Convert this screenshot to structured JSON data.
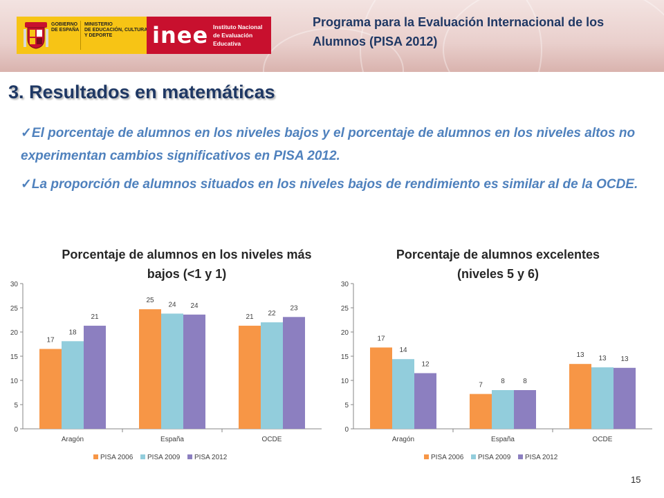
{
  "header": {
    "gobierno_text": "GOBIERNO\nDE ESPAÑA",
    "ministerio_text": "MINISTERIO\nDE EDUCACIÓN, CULTURA\nY DEPORTE",
    "inee_mark": "inee",
    "inee_text": "Instituto Nacional\nde Evaluación\nEducativa",
    "program_title": "Programa para la Evaluación Internacional de los Alumnos (PISA 2012)"
  },
  "slide": {
    "title": "3. Resultados en matemáticas",
    "bullets": [
      "El porcentaje de alumnos en los niveles bajos y el porcentaje de alumnos en los niveles altos  no experimentan cambios significativos en PISA 2012.",
      "La proporción de alumnos situados en los niveles bajos de rendimiento es similar al de la OCDE."
    ],
    "check_mark": "✓",
    "page_number": "15"
  },
  "colors": {
    "PISA 2006": "#f79646",
    "PISA 2009": "#92cddc",
    "PISA 2012": "#8c7fc0",
    "title": "#1f3864",
    "bullets": "#4f81bd"
  },
  "chart_data": [
    {
      "type": "bar",
      "title": "Porcentaje de alumnos en los niveles más bajos (<1 y 1)",
      "categories": [
        "Aragón",
        "España",
        "OCDE"
      ],
      "series": [
        {
          "name": "PISA 2006",
          "values": [
            17,
            25,
            21
          ],
          "plotted": [
            16.5,
            24.7,
            21.3
          ]
        },
        {
          "name": "PISA 2009",
          "values": [
            18,
            24,
            22
          ],
          "plotted": [
            18.1,
            23.8,
            22.0
          ]
        },
        {
          "name": "PISA 2012",
          "values": [
            21,
            24,
            23
          ],
          "plotted": [
            21.3,
            23.6,
            23.1
          ]
        }
      ],
      "ylim": [
        0,
        30
      ],
      "yticks": [
        0,
        5,
        10,
        15,
        20,
        25,
        30
      ],
      "legend": "bottom",
      "grid": false
    },
    {
      "type": "bar",
      "title": "Porcentaje de alumnos excelentes (niveles 5 y 6)",
      "categories": [
        "Aragón",
        "España",
        "OCDE"
      ],
      "series": [
        {
          "name": "PISA 2006",
          "values": [
            17,
            7,
            13
          ],
          "plotted": [
            16.8,
            7.2,
            13.4
          ]
        },
        {
          "name": "PISA 2009",
          "values": [
            14,
            8,
            13
          ],
          "plotted": [
            14.4,
            8.0,
            12.7
          ]
        },
        {
          "name": "PISA 2012",
          "values": [
            12,
            8,
            13
          ],
          "plotted": [
            11.5,
            8.0,
            12.6
          ]
        }
      ],
      "ylim": [
        0,
        30
      ],
      "yticks": [
        0,
        5,
        10,
        15,
        20,
        25,
        30
      ],
      "legend": "bottom",
      "grid": false
    }
  ]
}
